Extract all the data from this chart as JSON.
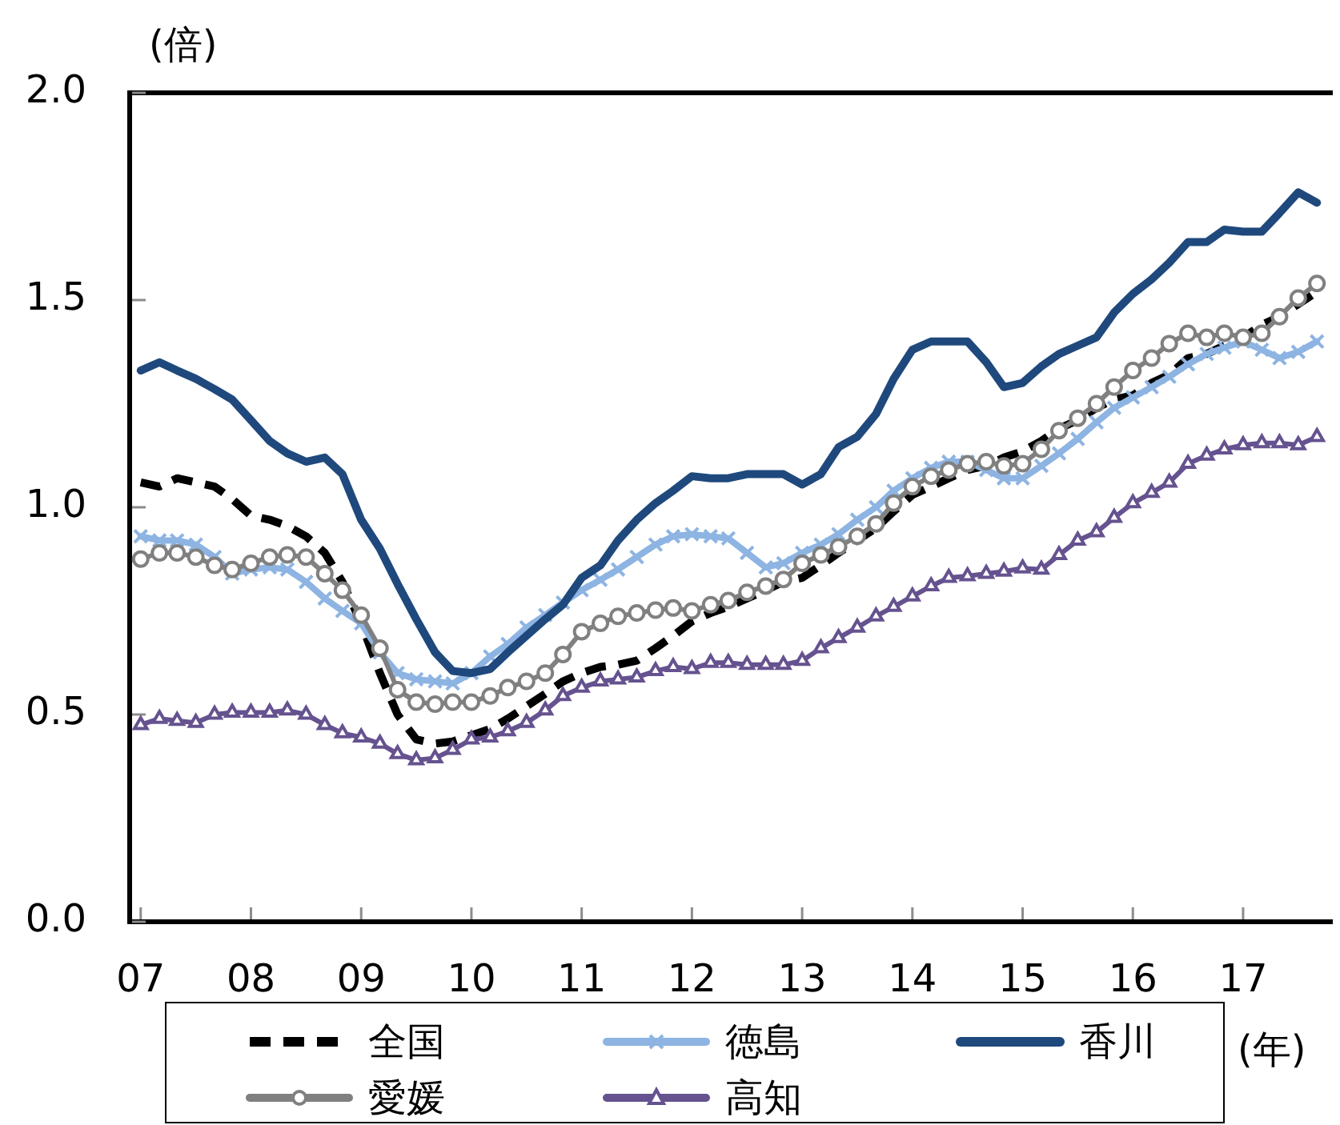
{
  "chart_data": {
    "type": "line",
    "ylabel": "(倍)",
    "xlabel": "(年)",
    "x": [
      2007,
      2007.17,
      2007.33,
      2007.5,
      2007.67,
      2007.83,
      2008,
      2008.17,
      2008.33,
      2008.5,
      2008.67,
      2008.83,
      2009,
      2009.17,
      2009.33,
      2009.5,
      2009.67,
      2009.83,
      2010,
      2010.17,
      2010.33,
      2010.5,
      2010.67,
      2010.83,
      2011,
      2011.17,
      2011.33,
      2011.5,
      2011.67,
      2011.83,
      2012,
      2012.17,
      2012.33,
      2012.5,
      2012.67,
      2012.83,
      2013,
      2013.17,
      2013.33,
      2013.5,
      2013.67,
      2013.83,
      2014,
      2014.17,
      2014.33,
      2014.5,
      2014.67,
      2014.83,
      2015,
      2015.17,
      2015.33,
      2015.5,
      2015.67,
      2015.83,
      2016,
      2016.17,
      2016.33,
      2016.5,
      2016.67,
      2016.83,
      2017,
      2017.17,
      2017.33,
      2017.5,
      2017.67
    ],
    "xlim": [
      2006.9,
      2017.77
    ],
    "xticks": [
      {
        "value": 2007,
        "label": "07"
      },
      {
        "value": 2008,
        "label": "08"
      },
      {
        "value": 2009,
        "label": "09"
      },
      {
        "value": 2010,
        "label": "10"
      },
      {
        "value": 2011,
        "label": "11"
      },
      {
        "value": 2012,
        "label": "12"
      },
      {
        "value": 2013,
        "label": "13"
      },
      {
        "value": 2014,
        "label": "14"
      },
      {
        "value": 2015,
        "label": "15"
      },
      {
        "value": 2016,
        "label": "16"
      },
      {
        "value": 2017,
        "label": "17"
      }
    ],
    "ylim": [
      0,
      2
    ],
    "yticks": [
      {
        "value": 0,
        "label": "0.0"
      },
      0.5,
      {
        "value": 1,
        "label": "1.0"
      },
      1.5,
      {
        "value": 2,
        "label": "2.0"
      }
    ],
    "legend": "bottom",
    "series": [
      {
        "name": "全国",
        "color": "#000000",
        "line_style": "dashed",
        "values": [
          1.06,
          1.05,
          1.07,
          1.06,
          1.05,
          1.02,
          0.98,
          0.97,
          0.955,
          0.93,
          0.89,
          0.82,
          0.72,
          0.6,
          0.5,
          0.44,
          0.43,
          0.435,
          0.45,
          0.465,
          0.49,
          0.52,
          0.55,
          0.58,
          0.6,
          0.615,
          0.62,
          0.63,
          0.66,
          0.69,
          0.725,
          0.745,
          0.76,
          0.78,
          0.8,
          0.82,
          0.83,
          0.86,
          0.89,
          0.92,
          0.95,
          0.99,
          1.03,
          1.05,
          1.07,
          1.09,
          1.1,
          1.12,
          1.135,
          1.16,
          1.19,
          1.21,
          1.24,
          1.26,
          1.27,
          1.3,
          1.32,
          1.36,
          1.37,
          1.39,
          1.41,
          1.44,
          1.46,
          1.49,
          1.52
        ]
      },
      {
        "name": "徳島",
        "color": "#8db4e2",
        "marker": "cross",
        "values": [
          0.93,
          0.92,
          0.92,
          0.91,
          0.88,
          0.84,
          0.85,
          0.855,
          0.85,
          0.82,
          0.78,
          0.75,
          0.72,
          0.65,
          0.6,
          0.585,
          0.58,
          0.575,
          0.6,
          0.64,
          0.67,
          0.71,
          0.74,
          0.77,
          0.8,
          0.825,
          0.85,
          0.88,
          0.91,
          0.93,
          0.935,
          0.93,
          0.925,
          0.89,
          0.855,
          0.865,
          0.89,
          0.91,
          0.935,
          0.97,
          1.0,
          1.04,
          1.07,
          1.095,
          1.11,
          1.11,
          1.09,
          1.07,
          1.07,
          1.1,
          1.13,
          1.165,
          1.205,
          1.24,
          1.265,
          1.29,
          1.315,
          1.345,
          1.37,
          1.385,
          1.4,
          1.38,
          1.36,
          1.375,
          1.4
        ]
      },
      {
        "name": "香川",
        "color": "#1f497d",
        "values": [
          1.33,
          1.35,
          1.33,
          1.31,
          1.285,
          1.26,
          1.21,
          1.16,
          1.13,
          1.11,
          1.12,
          1.08,
          0.97,
          0.9,
          0.815,
          0.73,
          0.65,
          0.605,
          0.6,
          0.61,
          0.65,
          0.69,
          0.73,
          0.765,
          0.83,
          0.86,
          0.92,
          0.97,
          1.01,
          1.04,
          1.075,
          1.07,
          1.07,
          1.08,
          1.08,
          1.08,
          1.055,
          1.08,
          1.145,
          1.17,
          1.225,
          1.31,
          1.38,
          1.4,
          1.4,
          1.4,
          1.35,
          1.29,
          1.3,
          1.34,
          1.37,
          1.39,
          1.41,
          1.47,
          1.515,
          1.55,
          1.59,
          1.64,
          1.64,
          1.67,
          1.665,
          1.665,
          1.71,
          1.76,
          1.735
        ]
      },
      {
        "name": "愛媛",
        "color": "#808080",
        "marker": "circle",
        "values": [
          0.875,
          0.89,
          0.89,
          0.88,
          0.86,
          0.85,
          0.865,
          0.88,
          0.885,
          0.88,
          0.84,
          0.8,
          0.74,
          0.66,
          0.56,
          0.53,
          0.525,
          0.53,
          0.53,
          0.545,
          0.565,
          0.58,
          0.6,
          0.645,
          0.7,
          0.72,
          0.737,
          0.745,
          0.752,
          0.757,
          0.75,
          0.765,
          0.775,
          0.795,
          0.81,
          0.826,
          0.865,
          0.885,
          0.905,
          0.93,
          0.96,
          1.01,
          1.05,
          1.075,
          1.09,
          1.105,
          1.11,
          1.1,
          1.105,
          1.14,
          1.185,
          1.215,
          1.25,
          1.29,
          1.33,
          1.36,
          1.395,
          1.42,
          1.41,
          1.42,
          1.41,
          1.42,
          1.46,
          1.505,
          1.54
        ]
      },
      {
        "name": "高知",
        "color": "#65528f",
        "marker": "triangle",
        "values": [
          0.475,
          0.49,
          0.485,
          0.48,
          0.5,
          0.505,
          0.505,
          0.505,
          0.51,
          0.5,
          0.475,
          0.455,
          0.445,
          0.43,
          0.405,
          0.39,
          0.395,
          0.415,
          0.44,
          0.445,
          0.46,
          0.48,
          0.51,
          0.545,
          0.565,
          0.58,
          0.585,
          0.59,
          0.605,
          0.615,
          0.61,
          0.625,
          0.625,
          0.62,
          0.62,
          0.62,
          0.63,
          0.66,
          0.685,
          0.71,
          0.737,
          0.76,
          0.785,
          0.81,
          0.83,
          0.834,
          0.84,
          0.845,
          0.853,
          0.85,
          0.885,
          0.92,
          0.94,
          0.975,
          1.01,
          1.035,
          1.06,
          1.105,
          1.125,
          1.14,
          1.15,
          1.155,
          1.155,
          1.15,
          1.17
        ]
      }
    ]
  }
}
